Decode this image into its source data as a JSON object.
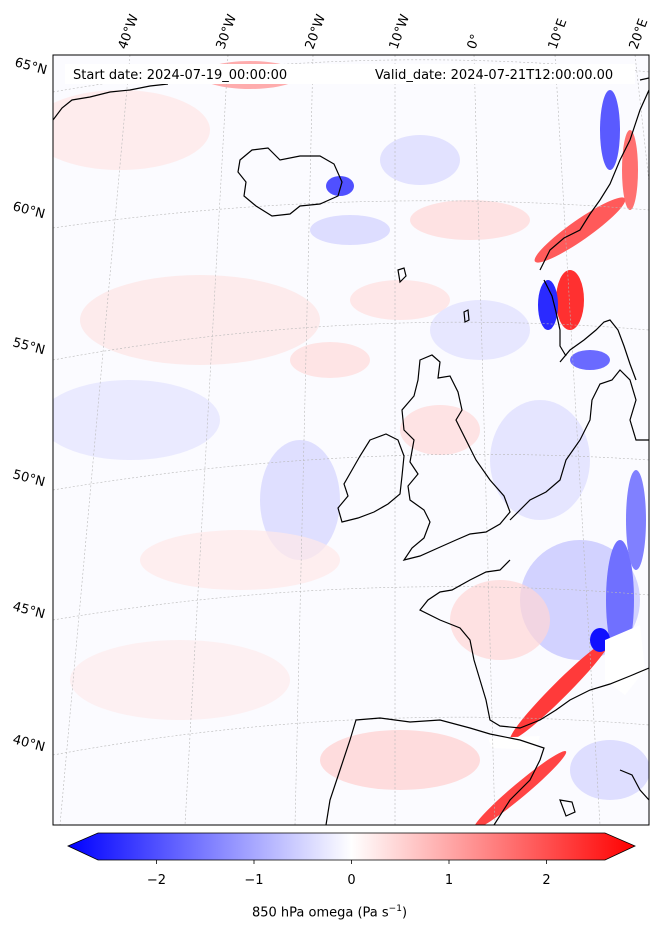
{
  "header": {
    "start_date": "Start date: 2024-07-19_00:00:00",
    "valid_date": "Valid_date: 2024-07-21T12:00:00.00"
  },
  "longitude_labels": [
    "40°W",
    "30°W",
    "20°W",
    "10°W",
    "0°",
    "10°E",
    "20°E"
  ],
  "latitude_labels": [
    "65°N",
    "60°N",
    "55°N",
    "50°N",
    "45°N",
    "40°N"
  ],
  "colorbar": {
    "ticks": [
      -2,
      -1,
      0,
      1,
      2
    ],
    "tick_labels": [
      "−2",
      "−1",
      "0",
      "1",
      "2"
    ],
    "range": [
      -2.6,
      2.6
    ],
    "extend": "both",
    "label_main": "850 hPa omega (Pa s",
    "label_sup": "−1",
    "label_close": ")",
    "colormap": "bwr",
    "colors": {
      "low": "#0000ff",
      "mid": "#ffffff",
      "high": "#ff0000"
    }
  },
  "map": {
    "variable": "850 hPa omega",
    "region": "North Atlantic / Western Europe",
    "projection": "Lambert conformal",
    "gridlines": true,
    "coastline_color": "#000000"
  }
}
